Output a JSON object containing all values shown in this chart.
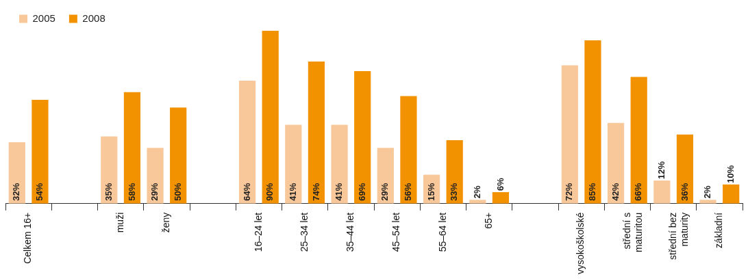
{
  "chart_data": {
    "type": "bar",
    "categories": [
      "Celkem 16+",
      null,
      "muži",
      "ženy",
      null,
      "16–24 let",
      "25–34 let",
      "35–44 let",
      "45–54 let",
      "55–64 let",
      "65+",
      null,
      "vysokoškolské",
      "střední s maturitou",
      "střední bez maturity",
      "základní"
    ],
    "series": [
      {
        "name": "2005",
        "color": "#f8c89b",
        "values": [
          32,
          null,
          35,
          29,
          null,
          64,
          41,
          41,
          29,
          15,
          2,
          null,
          72,
          42,
          12,
          2
        ],
        "value_labels": [
          "32%",
          null,
          "35%",
          "29%",
          null,
          "64%",
          "41%",
          "41%",
          "29%",
          "15%",
          "2%",
          null,
          "72%",
          "42%",
          "12%",
          "2%"
        ]
      },
      {
        "name": "2008",
        "color": "#f39200",
        "values": [
          54,
          null,
          58,
          50,
          null,
          90,
          74,
          69,
          56,
          33,
          6,
          null,
          85,
          66,
          36,
          10
        ],
        "value_labels": [
          "54%",
          null,
          "58%",
          "50%",
          null,
          "90%",
          "74%",
          "69%",
          "56%",
          "33%",
          "6%",
          null,
          "85%",
          "66%",
          "36%",
          "10%"
        ]
      }
    ],
    "legend": "top left",
    "grid": false
  }
}
